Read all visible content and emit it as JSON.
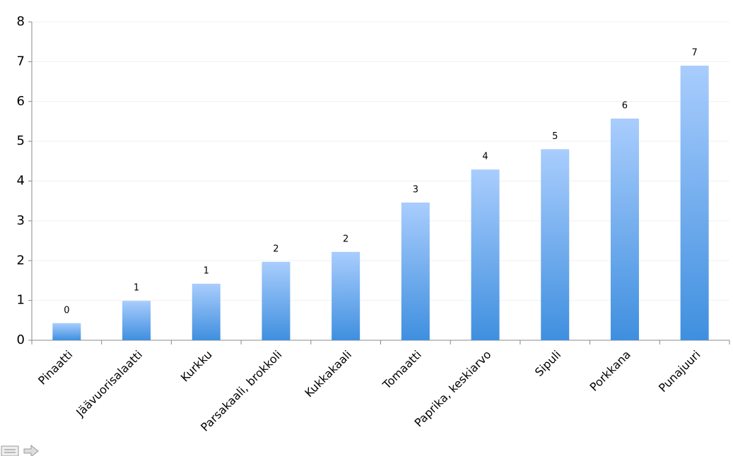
{
  "chart_data": {
    "type": "bar",
    "categories": [
      "Pinaatti",
      "Jäävuorisalaatti",
      "Kurkku",
      "Parsakaali, brokkoli",
      "Kukkakaali",
      "Tomaatti",
      "Paprika, keskiarvo",
      "Sipuli",
      "Porkkana",
      "Punajuuri"
    ],
    "values": [
      0.43,
      0.99,
      1.42,
      1.97,
      2.22,
      3.46,
      4.29,
      4.8,
      5.57,
      6.9
    ],
    "value_labels": [
      "0",
      "1",
      "1",
      "2",
      "2",
      "3",
      "4",
      "5",
      "6",
      "7"
    ],
    "color": "#5a9ee8",
    "ylim": [
      0,
      8
    ],
    "yticks": [
      0,
      1,
      2,
      3,
      4,
      5,
      6,
      7,
      8
    ],
    "grid": true
  }
}
